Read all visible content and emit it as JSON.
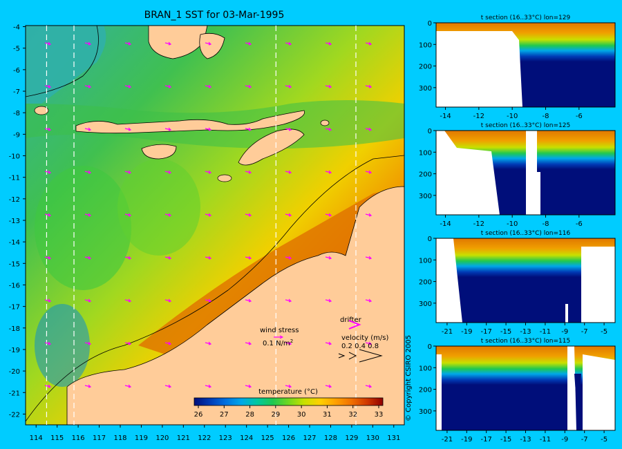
{
  "title": "BRAN_1 SST for 03-Mar-1995",
  "copyright": "© Copyright CSIRO 2005",
  "colors": {
    "background": "#00CCFF",
    "land": "#FFCC99",
    "ocean_warm": "#E07800",
    "ocean_deep": "#000E7A",
    "velocity_arrow": "#FF00FF"
  },
  "map": {
    "lon_ticks": [
      "114",
      "115",
      "116",
      "117",
      "118",
      "119",
      "120",
      "121",
      "122",
      "123",
      "124",
      "125",
      "126",
      "127",
      "128",
      "129",
      "130",
      "131"
    ],
    "lat_ticks": [
      "-4",
      "-5",
      "-6",
      "-7",
      "-8",
      "-9",
      "-10",
      "-11",
      "-12",
      "-13",
      "-14",
      "-15",
      "-16",
      "-17",
      "-18",
      "-19",
      "-20",
      "-21",
      "-22"
    ],
    "section_lines_lon": [
      114.5,
      115.8,
      125.4,
      129.2
    ],
    "legend": {
      "wind_stress_label": "wind stress",
      "wind_stress_value": "0.1 N/m",
      "wind_stress_exp": "2",
      "drifter_label": "drifter",
      "velocity_label": "velocity (m/s)",
      "velocity_values": "0.2 0.4 0.8"
    },
    "colorbar": {
      "title": "temperature (°C)",
      "ticks": [
        "26",
        "27",
        "28",
        "29",
        "30",
        "31",
        "32",
        "33"
      ],
      "colors": [
        "#000E7A",
        "#003AB5",
        "#0070E0",
        "#00A8E8",
        "#00C8A0",
        "#20C850",
        "#70D820",
        "#C8E000",
        "#FFD000",
        "#FFA000",
        "#F07000",
        "#D03800",
        "#900000"
      ]
    }
  },
  "sections": [
    {
      "title": "t section (16..33°C) lon=129",
      "x_ticks": [
        "-14",
        "-12",
        "-10",
        "-8",
        "-6"
      ],
      "y_ticks": [
        "0",
        "100",
        "200",
        "300"
      ]
    },
    {
      "title": "t section (16..33°C) lon=125",
      "x_ticks": [
        "-14",
        "-12",
        "-10",
        "-8",
        "-6"
      ],
      "y_ticks": [
        "0",
        "100",
        "200",
        "300"
      ]
    },
    {
      "title": "t section (16..33°C) lon=116",
      "x_ticks": [
        "-21",
        "-19",
        "-17",
        "-15",
        "-13",
        "-11",
        "-9",
        "-7",
        "-5"
      ],
      "y_ticks": [
        "0",
        "100",
        "200",
        "300"
      ]
    },
    {
      "title": "t section (16..33°C) lon=115",
      "x_ticks": [
        "-21",
        "-19",
        "-17",
        "-15",
        "-13",
        "-11",
        "-9",
        "-7",
        "-5"
      ],
      "y_ticks": [
        "0",
        "100",
        "200",
        "300"
      ]
    }
  ]
}
